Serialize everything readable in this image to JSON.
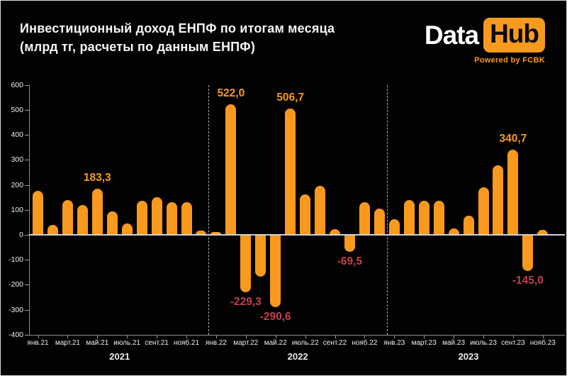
{
  "header": {
    "title_line1": "Инвестиционный доход ЕНПФ по итогам месяца",
    "title_line2": "(млрд тг, расчеты по данным ЕНПФ)",
    "logo": {
      "part1": "Data",
      "part2": "Hub",
      "tagline": "Powered by FCBK"
    }
  },
  "colors": {
    "background": "#020202",
    "bar": "#f9991d",
    "positive_label": "#f9991d",
    "negative_label": "#c23f4d",
    "zero_line": "#ccd2d6",
    "axis": "#8a8a8a",
    "text": "#f0f0f0"
  },
  "chart_data": {
    "type": "bar",
    "title": "Инвестиционный доход ЕНПФ по итогам месяца (млрд тг, расчеты по данным ЕНПФ)",
    "ylabel": "млрд тг",
    "ylim": [
      -400,
      600
    ],
    "y_ticks": [
      600,
      500,
      400,
      300,
      200,
      100,
      0,
      -100,
      -200,
      -300,
      -400
    ],
    "grid": "off",
    "legend": "none",
    "months": [
      {
        "month": "янв.21",
        "value": 175,
        "annotation": null
      },
      {
        "month": "фев.21",
        "value": 40,
        "annotation": null
      },
      {
        "month": "март.21",
        "value": 140,
        "annotation": null
      },
      {
        "month": "апр.21",
        "value": 120,
        "annotation": null
      },
      {
        "month": "май.21",
        "value": 183.3,
        "annotation": "183,3"
      },
      {
        "month": "июнь.21",
        "value": 93,
        "annotation": null
      },
      {
        "month": "июль.21",
        "value": 45,
        "annotation": null
      },
      {
        "month": "авг.21",
        "value": 135,
        "annotation": null
      },
      {
        "month": "сент.21",
        "value": 150,
        "annotation": null
      },
      {
        "month": "окт.21",
        "value": 132,
        "annotation": null
      },
      {
        "month": "нояб.21",
        "value": 132,
        "annotation": null
      },
      {
        "month": "дек.21",
        "value": 16,
        "annotation": null
      },
      {
        "month": "янв.22",
        "value": 10,
        "annotation": null
      },
      {
        "month": "фев.22",
        "value": 522.0,
        "annotation": "522,0"
      },
      {
        "month": "март.22",
        "value": -229.3,
        "annotation": "-229,3"
      },
      {
        "month": "апр.22",
        "value": -167,
        "annotation": null
      },
      {
        "month": "май.22",
        "value": -290.6,
        "annotation": "-290,6"
      },
      {
        "month": "июнь.22",
        "value": 506.7,
        "annotation": "506,7"
      },
      {
        "month": "июль.22",
        "value": 162,
        "annotation": null
      },
      {
        "month": "авг.22",
        "value": 195,
        "annotation": null
      },
      {
        "month": "сент.22",
        "value": 22,
        "annotation": null
      },
      {
        "month": "окт.22",
        "value": -69.5,
        "annotation": "-69,5"
      },
      {
        "month": "нояб.22",
        "value": 130,
        "annotation": null
      },
      {
        "month": "дек.22",
        "value": 105,
        "annotation": null
      },
      {
        "month": "янв.23",
        "value": 62,
        "annotation": null
      },
      {
        "month": "фев.23",
        "value": 139,
        "annotation": null
      },
      {
        "month": "март.23",
        "value": 136,
        "annotation": null
      },
      {
        "month": "апр.23",
        "value": 136,
        "annotation": null
      },
      {
        "month": "май.23",
        "value": 25,
        "annotation": null
      },
      {
        "month": "июнь.23",
        "value": 78,
        "annotation": null
      },
      {
        "month": "июль.23",
        "value": 190,
        "annotation": null
      },
      {
        "month": "авг.23",
        "value": 278,
        "annotation": null
      },
      {
        "month": "сент.23",
        "value": 340.7,
        "annotation": "340,7"
      },
      {
        "month": "окт.23",
        "value": -145.0,
        "annotation": "-145,0"
      },
      {
        "month": "нояб.23",
        "value": 20,
        "annotation": null
      }
    ],
    "x_tick_every": 2,
    "year_groups": [
      {
        "label": "2021",
        "from": 0,
        "to": 11
      },
      {
        "label": "2022",
        "from": 12,
        "to": 23
      },
      {
        "label": "2023",
        "from": 24,
        "to": 34
      }
    ]
  }
}
